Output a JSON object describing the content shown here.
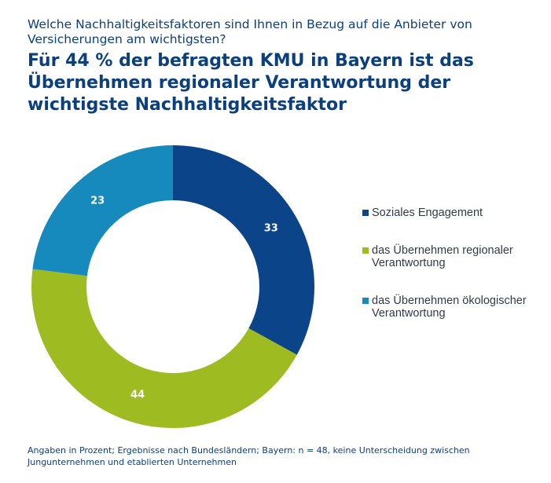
{
  "header": {
    "question": "Welche Nachhaltigkeitsfaktoren sind Ihnen in Bezug auf die Anbieter von Versicherungen am wichtigsten?",
    "headline": "Für 44 % der befragten KMU in Bayern ist das Übernehmen regionaler Verantwortung der wichtigste Nachhaltigkeitsfaktor"
  },
  "footnote": "Angaben in Prozent; Ergebnisse nach Bundesländern; Bayern: n = 48, keine Unterscheidung zwischen Jungunternehmen und etablierten Unternehmen",
  "chart_data": {
    "type": "pie",
    "donut": true,
    "categories": [
      "Soziales Engagement",
      "das Übernehmen regionaler Verantwortung",
      "das Übernehmen ökologischer Verantwortung"
    ],
    "values": [
      33,
      44,
      23
    ],
    "colors": [
      "#0b4488",
      "#9ebb22",
      "#1689bd"
    ],
    "unit": "%",
    "legend_placement": "right"
  }
}
